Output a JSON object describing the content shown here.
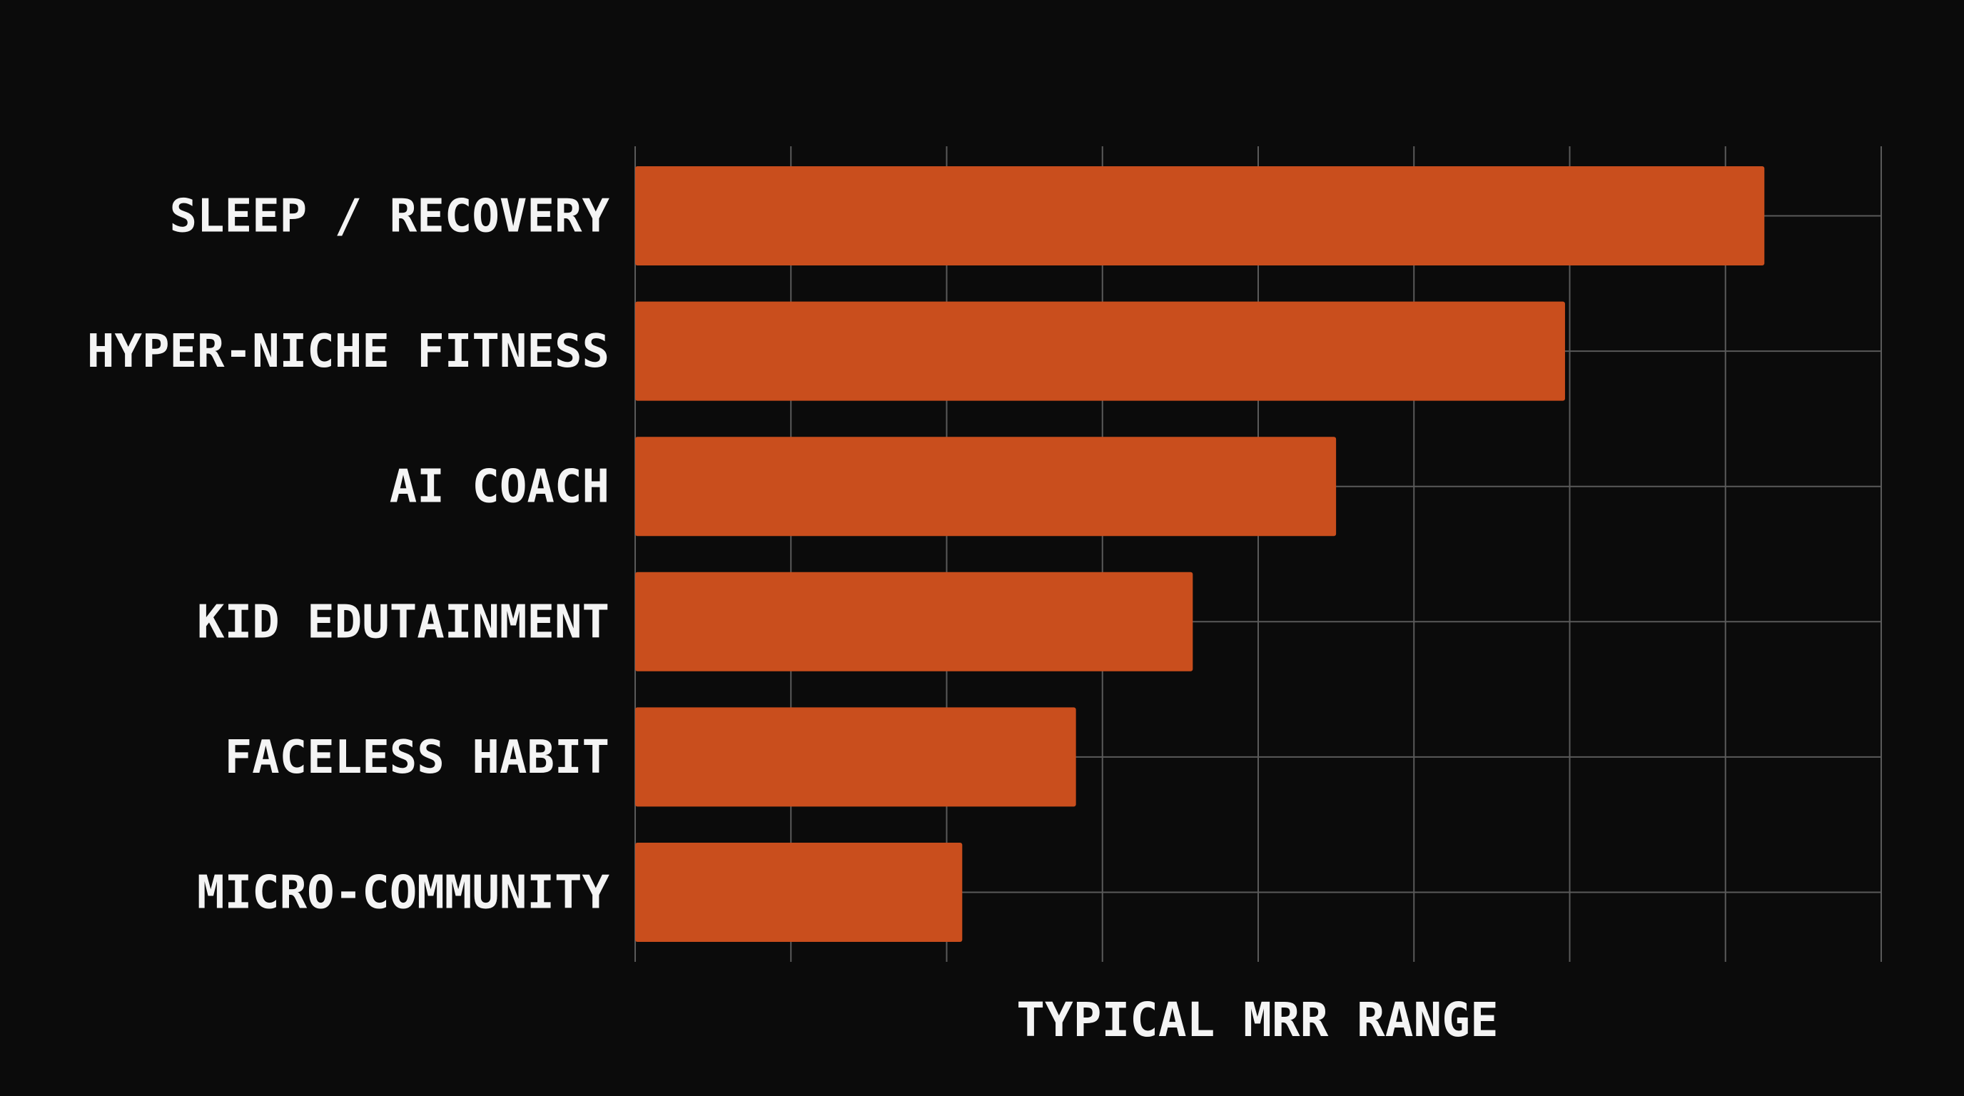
{
  "chart_data": {
    "type": "bar",
    "orientation": "horizontal",
    "title": "",
    "xlabel": "TYPICAL MRR RANGE",
    "ylabel": "",
    "categories": [
      "SLEEP / RECOVERY",
      "HYPER-NICHE FITNESS",
      "AI COACH",
      "KID EDUTAINMENT",
      "FACELESS HABIT",
      "MICRO-COMMUNITY"
    ],
    "values": [
      7.25,
      5.97,
      4.5,
      3.58,
      2.83,
      2.1
    ],
    "xlim": [
      0,
      8
    ],
    "grid": true,
    "bar_color": "#c94e1d",
    "background_color": "#0b0b0b",
    "grid_color": "#5a5a5a",
    "text_color": "#f4f4f4"
  }
}
